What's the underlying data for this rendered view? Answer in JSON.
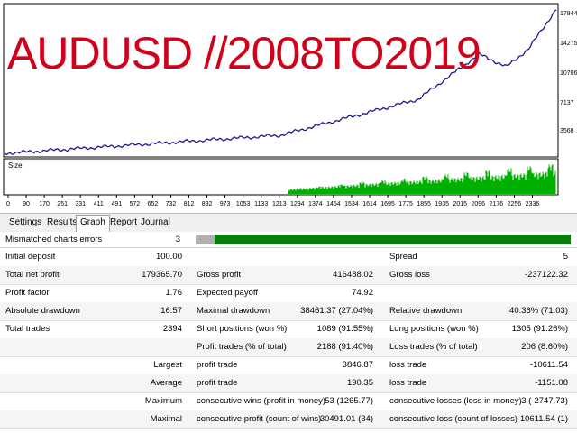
{
  "chart": {
    "title_overlay": "AUDUSD //2008TO2019",
    "y_axis_labels": [
      "17844",
      "14275",
      "10706",
      "7137",
      "3568"
    ],
    "x_axis_labels": [
      "0",
      "90",
      "170",
      "251",
      "331",
      "411",
      "491",
      "572",
      "652",
      "732",
      "812",
      "892",
      "973",
      "1053",
      "1133",
      "1213",
      "1294",
      "1374",
      "1454",
      "1534",
      "1614",
      "1695",
      "1775",
      "1855",
      "1935",
      "2015",
      "2096",
      "2176",
      "2256",
      "2336"
    ],
    "size_label": "Size",
    "colors": {
      "balance_line": "#1a1a8c",
      "size_bars": "#00b000",
      "title": "#d0021b"
    }
  },
  "tabs": [
    {
      "label": "Settings"
    },
    {
      "label": "Results"
    },
    {
      "label": "Graph",
      "active": true
    },
    {
      "label": "Report"
    },
    {
      "label": "Journal"
    }
  ],
  "mismatch": {
    "label": "Mismatched charts errors",
    "value": "3",
    "quality_bar_fill": 0.05,
    "colors": {
      "grey": "#b0b0b0",
      "green": "#0a7d0a"
    }
  },
  "report": {
    "initial_deposit": {
      "label": "Initial deposit",
      "value": "100.00"
    },
    "spread": {
      "label": "Spread",
      "value": "5"
    },
    "total_net_profit": {
      "label": "Total net profit",
      "value": "179365.70"
    },
    "gross_profit": {
      "label": "Gross profit",
      "value": "416488.02"
    },
    "gross_loss": {
      "label": "Gross loss",
      "value": "-237122.32"
    },
    "profit_factor": {
      "label": "Profit factor",
      "value": "1.76"
    },
    "expected_payoff": {
      "label": "Expected payoff",
      "value": "74.92"
    },
    "absolute_drawdown": {
      "label": "Absolute drawdown",
      "value": "16.57"
    },
    "maximal_drawdown": {
      "label": "Maximal drawdown",
      "value": "38461.37 (27.04%)"
    },
    "relative_drawdown": {
      "label": "Relative drawdown",
      "value": "40.36% (71.03)"
    },
    "total_trades": {
      "label": "Total trades",
      "value": "2394"
    },
    "short_positions": {
      "label": "Short positions (won %)",
      "value": "1089 (91.55%)"
    },
    "long_positions": {
      "label": "Long positions (won %)",
      "value": "1305 (91.26%)"
    },
    "profit_trades": {
      "label": "Profit trades (% of total)",
      "value": "2188 (91.40%)"
    },
    "loss_trades": {
      "label": "Loss trades (% of total)",
      "value": "206 (8.60%)"
    },
    "largest": {
      "label": "Largest",
      "profit_label": "profit trade",
      "profit_value": "3846.87",
      "loss_label": "loss trade",
      "loss_value": "-10611.54"
    },
    "average": {
      "label": "Average",
      "profit_label": "profit trade",
      "profit_value": "190.35",
      "loss_label": "loss trade",
      "loss_value": "-1151.08"
    },
    "maximum": {
      "label": "Maximum",
      "profit_label": "consecutive wins (profit in money)",
      "profit_value": "53 (1265.77)",
      "loss_label": "consecutive losses (loss in money)",
      "loss_value": "3 (-2747.73)"
    },
    "maximal": {
      "label": "Maximal",
      "profit_label": "consecutive profit (count of wins)",
      "profit_value": "30491.01 (34)",
      "loss_label": "consecutive loss (count of losses)",
      "loss_value": "-10611.54 (1)"
    }
  }
}
